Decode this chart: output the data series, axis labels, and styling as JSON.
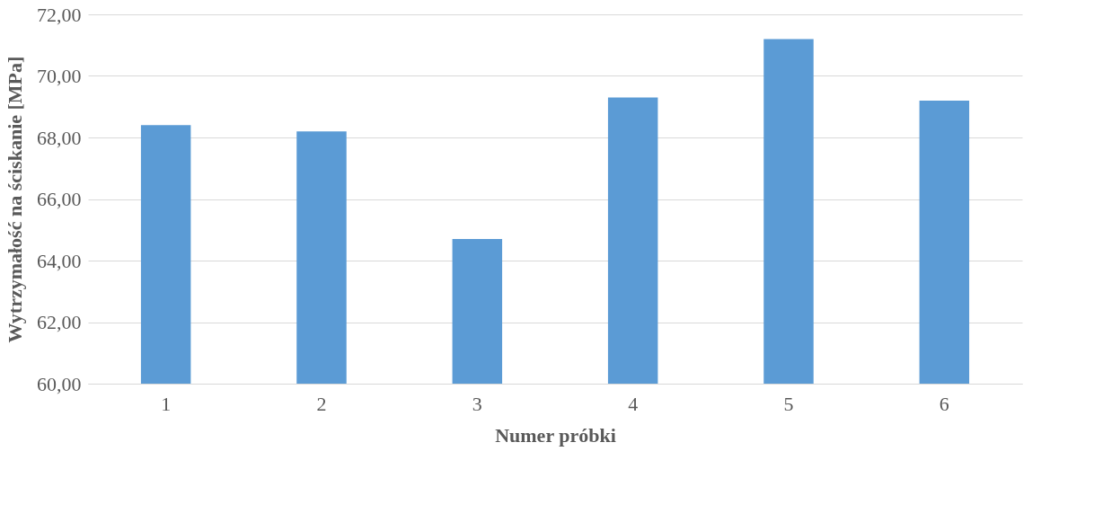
{
  "chart_data": {
    "type": "bar",
    "xlabel": "Numer próbki",
    "ylabel": "Wytrzymałość na ściskanie [MPa]",
    "categories": [
      "1",
      "2",
      "3",
      "4",
      "5",
      "6"
    ],
    "values": [
      68.4,
      68.2,
      64.7,
      69.3,
      71.2,
      69.2
    ],
    "color": "#5b9bd5",
    "ylim": [
      60,
      72
    ],
    "yticks": [
      {
        "value": 60,
        "label": "60,00"
      },
      {
        "value": 62,
        "label": "62,00"
      },
      {
        "value": 64,
        "label": "64,00"
      },
      {
        "value": 66,
        "label": "66,00"
      },
      {
        "value": 68,
        "label": "68,00"
      },
      {
        "value": 70,
        "label": "70,00"
      },
      {
        "value": 72,
        "label": "72,00"
      }
    ],
    "grid": "y"
  }
}
